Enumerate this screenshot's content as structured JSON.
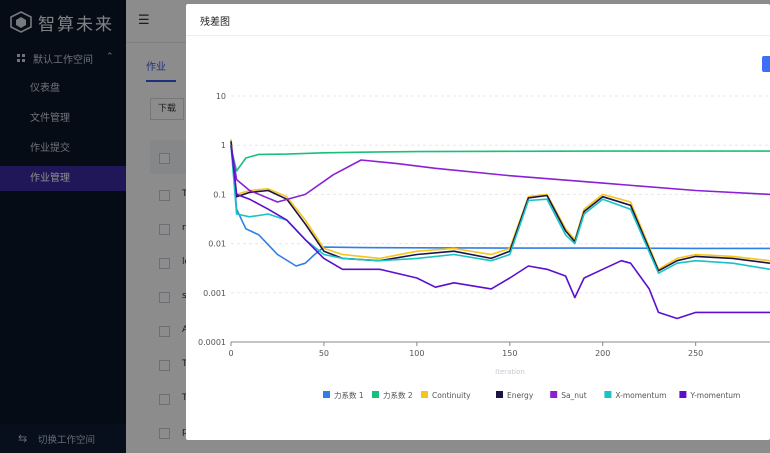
{
  "app": {
    "logo_text": "智算未来"
  },
  "sidebar": {
    "workspace": "默认工作空间",
    "items": [
      {
        "label": "仪表盘"
      },
      {
        "label": "文件管理"
      },
      {
        "label": "作业提交"
      },
      {
        "label": "作业管理",
        "active": true
      }
    ],
    "switch_label": "切换工作空间"
  },
  "main": {
    "tab_label": "作业",
    "download_label": "下载",
    "row_initials": [
      "T",
      "n",
      "lo",
      "s",
      "A",
      "T",
      "T",
      "p"
    ]
  },
  "modal": {
    "title": "残差图"
  },
  "colors": {
    "sidebar_bg": "#0b1628",
    "active_nav": "#3a2b9e",
    "accent": "#3d6ef5"
  },
  "chart_data": {
    "type": "line",
    "title": "",
    "xlabel": "Iteration",
    "ylabel": "",
    "y_scale": "log",
    "ylim": [
      0.0001,
      10
    ],
    "y_ticks": [
      "10",
      "1",
      "0.1",
      "0.01",
      "0.001",
      "0.0001"
    ],
    "x_ticks": [
      "0",
      "50",
      "100",
      "150",
      "200",
      "250"
    ],
    "xlim": [
      0,
      290
    ],
    "legend_position": "bottom",
    "grid": true,
    "series": [
      {
        "name": "力系数 1",
        "color": "#2f7fe6",
        "x": [
          0,
          3,
          8,
          15,
          25,
          35,
          40,
          45,
          50,
          70,
          100,
          150,
          200,
          250,
          290
        ],
        "y": [
          1.3,
          0.05,
          0.02,
          0.015,
          0.006,
          0.0035,
          0.004,
          0.006,
          0.0085,
          0.0083,
          0.0082,
          0.0081,
          0.0081,
          0.008,
          0.008
        ]
      },
      {
        "name": "力系数 2",
        "color": "#18c07c",
        "x": [
          0,
          3,
          8,
          15,
          30,
          50,
          70,
          100,
          150,
          200,
          250,
          290
        ],
        "y": [
          0.9,
          0.3,
          0.55,
          0.65,
          0.66,
          0.7,
          0.72,
          0.74,
          0.75,
          0.76,
          0.76,
          0.76
        ]
      },
      {
        "name": "Continuity",
        "color": "#f5c518",
        "x": [
          0,
          3,
          10,
          20,
          30,
          40,
          50,
          60,
          80,
          100,
          120,
          140,
          150,
          160,
          170,
          180,
          185,
          190,
          200,
          215,
          230,
          240,
          250,
          270,
          290
        ],
        "y": [
          1.3,
          0.1,
          0.12,
          0.13,
          0.09,
          0.03,
          0.008,
          0.006,
          0.005,
          0.007,
          0.008,
          0.006,
          0.008,
          0.09,
          0.1,
          0.02,
          0.012,
          0.05,
          0.1,
          0.07,
          0.003,
          0.005,
          0.006,
          0.0055,
          0.0045
        ]
      },
      {
        "name": "Energy",
        "color": "#1d1446",
        "x": [
          0,
          3,
          10,
          20,
          30,
          40,
          50,
          60,
          80,
          100,
          120,
          140,
          150,
          160,
          170,
          180,
          185,
          190,
          200,
          215,
          230,
          240,
          250,
          270,
          290
        ],
        "y": [
          1.2,
          0.09,
          0.11,
          0.12,
          0.08,
          0.025,
          0.007,
          0.005,
          0.0045,
          0.006,
          0.007,
          0.005,
          0.007,
          0.085,
          0.095,
          0.018,
          0.011,
          0.045,
          0.09,
          0.06,
          0.0028,
          0.0045,
          0.0055,
          0.005,
          0.004
        ]
      },
      {
        "name": "Sa_nut",
        "color": "#8b20d6",
        "x": [
          0,
          3,
          10,
          25,
          40,
          55,
          70,
          90,
          110,
          150,
          200,
          250,
          290
        ],
        "y": [
          1.0,
          0.2,
          0.12,
          0.07,
          0.1,
          0.25,
          0.5,
          0.42,
          0.34,
          0.24,
          0.17,
          0.12,
          0.1
        ]
      },
      {
        "name": "X-momentum",
        "color": "#19c3c6",
        "x": [
          0,
          3,
          10,
          20,
          30,
          40,
          50,
          60,
          80,
          100,
          120,
          140,
          150,
          160,
          170,
          180,
          185,
          190,
          200,
          215,
          230,
          240,
          250,
          270,
          290
        ],
        "y": [
          1.0,
          0.04,
          0.035,
          0.04,
          0.03,
          0.012,
          0.006,
          0.005,
          0.0045,
          0.005,
          0.006,
          0.0045,
          0.006,
          0.075,
          0.08,
          0.015,
          0.01,
          0.04,
          0.08,
          0.05,
          0.0025,
          0.004,
          0.0045,
          0.004,
          0.003
        ]
      },
      {
        "name": "Y-momentum",
        "color": "#5b0fd0",
        "x": [
          0,
          3,
          10,
          20,
          30,
          40,
          50,
          60,
          80,
          100,
          110,
          120,
          140,
          150,
          160,
          170,
          180,
          185,
          190,
          200,
          210,
          215,
          225,
          230,
          240,
          250,
          270,
          290
        ],
        "y": [
          1.0,
          0.1,
          0.08,
          0.05,
          0.03,
          0.012,
          0.005,
          0.003,
          0.003,
          0.002,
          0.0013,
          0.0016,
          0.0012,
          0.002,
          0.0035,
          0.003,
          0.0022,
          0.0008,
          0.002,
          0.003,
          0.0045,
          0.004,
          0.0012,
          0.0004,
          0.0003,
          0.0004,
          0.0004,
          0.0004
        ]
      }
    ]
  }
}
